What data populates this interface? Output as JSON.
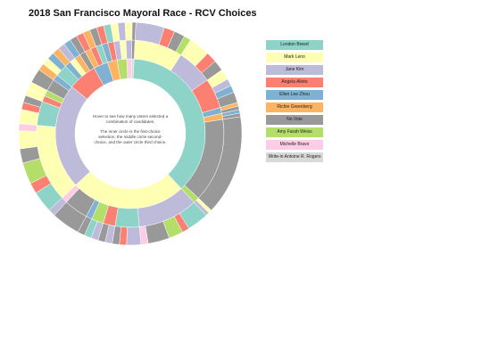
{
  "title": "2018 San Francisco Mayoral Race - RCV Choices",
  "hint": "Hover to see how many voters selected a combination of candidates.",
  "explanation": "The inner circle is the first-choice selection, the middle circle second-choice, and the outer circle third choice.",
  "colors": {
    "London Breed": "#8dd3c7",
    "Mark Leno": "#ffffb3",
    "Jane Kim": "#bebada",
    "Angela Alioto": "#fb8072",
    "Ellen Lee Zhou": "#80b1d3",
    "Richie Greenberg": "#fdb462",
    "No Vote": "#999999",
    "Amy Farah Weiss": "#b3de69",
    "Michelle Bravo": "#fccde5",
    "Write-in Antoine R. Rogers": "#d9d9d9"
  },
  "chart_data": {
    "type": "sunburst",
    "title": "2018 San Francisco Mayoral Race - RCV Choices",
    "legend": [
      "London Breed",
      "Mark Leno",
      "Jane Kim",
      "Angela Alioto",
      "Ellen Lee Zhou",
      "Richie Greenberg",
      "No Vote",
      "Amy Farah Weiss",
      "Michelle Bravo",
      "Write-in Antoine R. Rogers"
    ],
    "legend_position": "right",
    "rings": [
      "first choice",
      "second choice",
      "third choice"
    ],
    "hierarchy": [
      {
        "name": "London Breed",
        "value": 36,
        "children": [
          {
            "name": "Mark Leno",
            "value": 8,
            "children": [
              {
                "name": "Jane Kim",
                "value": 4
              },
              {
                "name": "Angela Alioto",
                "value": 1.5
              },
              {
                "name": "No Vote",
                "value": 1.5
              },
              {
                "name": "Amy Farah Weiss",
                "value": 1
              }
            ]
          },
          {
            "name": "Jane Kim",
            "value": 6,
            "children": [
              {
                "name": "Mark Leno",
                "value": 3
              },
              {
                "name": "Angela Alioto",
                "value": 1.5
              },
              {
                "name": "No Vote",
                "value": 1.5
              }
            ]
          },
          {
            "name": "Angela Alioto",
            "value": 5,
            "children": [
              {
                "name": "Mark Leno",
                "value": 1.5
              },
              {
                "name": "Jane Kim",
                "value": 1
              },
              {
                "name": "Ellen Lee Zhou",
                "value": 1
              },
              {
                "name": "No Vote",
                "value": 1.5
              }
            ]
          },
          {
            "name": "Ellen Lee Zhou",
            "value": 1,
            "children": [
              {
                "name": "Richie Greenberg",
                "value": 0.5
              },
              {
                "name": "No Vote",
                "value": 0.5
              }
            ]
          },
          {
            "name": "Richie Greenberg",
            "value": 1,
            "children": [
              {
                "name": "Ellen Lee Zhou",
                "value": 0.5
              },
              {
                "name": "No Vote",
                "value": 0.5
              }
            ]
          },
          {
            "name": "No Vote",
            "value": 14,
            "children": [
              {
                "name": "No Vote",
                "value": 14
              }
            ]
          },
          {
            "name": "Amy Farah Weiss",
            "value": 1,
            "children": [
              {
                "name": "Mark Leno",
                "value": 0.5
              },
              {
                "name": "Jane Kim",
                "value": 0.5
              }
            ]
          }
        ]
      },
      {
        "name": "Mark Leno",
        "value": 24,
        "children": [
          {
            "name": "Jane Kim",
            "value": 10,
            "children": [
              {
                "name": "London Breed",
                "value": 3
              },
              {
                "name": "Angela Alioto",
                "value": 1
              },
              {
                "name": "Amy Farah Weiss",
                "value": 2
              },
              {
                "name": "No Vote",
                "value": 3
              },
              {
                "name": "Michelle Bravo",
                "value": 1
              }
            ]
          },
          {
            "name": "London Breed",
            "value": 4,
            "children": [
              {
                "name": "Jane Kim",
                "value": 2
              },
              {
                "name": "Angela Alioto",
                "value": 1
              },
              {
                "name": "No Vote",
                "value": 1
              }
            ]
          },
          {
            "name": "Angela Alioto",
            "value": 2,
            "children": [
              {
                "name": "Jane Kim",
                "value": 1
              },
              {
                "name": "No Vote",
                "value": 1
              }
            ]
          },
          {
            "name": "Amy Farah Weiss",
            "value": 2,
            "children": [
              {
                "name": "Jane Kim",
                "value": 1
              },
              {
                "name": "London Breed",
                "value": 1
              }
            ]
          },
          {
            "name": "Ellen Lee Zhou",
            "value": 1,
            "children": [
              {
                "name": "No Vote",
                "value": 1
              }
            ]
          },
          {
            "name": "No Vote",
            "value": 4,
            "children": [
              {
                "name": "No Vote",
                "value": 4
              }
            ]
          },
          {
            "name": "Michelle Bravo",
            "value": 1,
            "children": [
              {
                "name": "Jane Kim",
                "value": 1
              }
            ]
          }
        ]
      },
      {
        "name": "Jane Kim",
        "value": 22,
        "children": [
          {
            "name": "Mark Leno",
            "value": 13,
            "children": [
              {
                "name": "London Breed",
                "value": 3
              },
              {
                "name": "Angela Alioto",
                "value": 1.5
              },
              {
                "name": "Amy Farah Weiss",
                "value": 3
              },
              {
                "name": "No Vote",
                "value": 2
              },
              {
                "name": "Mark Leno",
                "value": 2.5
              },
              {
                "name": "Michelle Bravo",
                "value": 1
              }
            ]
          },
          {
            "name": "London Breed",
            "value": 4,
            "children": [
              {
                "name": "Mark Leno",
                "value": 2
              },
              {
                "name": "Angela Alioto",
                "value": 1
              },
              {
                "name": "No Vote",
                "value": 1
              }
            ]
          },
          {
            "name": "Angela Alioto",
            "value": 1,
            "children": [
              {
                "name": "Mark Leno",
                "value": 1
              }
            ]
          },
          {
            "name": "Amy Farah Weiss",
            "value": 1,
            "children": [
              {
                "name": "Mark Leno",
                "value": 1
              }
            ]
          },
          {
            "name": "No Vote",
            "value": 2,
            "children": [
              {
                "name": "No Vote",
                "value": 2
              }
            ]
          },
          {
            "name": "Ellen Lee Zhou",
            "value": 1,
            "children": [
              {
                "name": "Richie Greenberg",
                "value": 1
              }
            ]
          }
        ]
      },
      {
        "name": "Angela Alioto",
        "value": 6,
        "children": [
          {
            "name": "London Breed",
            "value": 2,
            "children": [
              {
                "name": "Mark Leno",
                "value": 1
              },
              {
                "name": "Ellen Lee Zhou",
                "value": 1
              }
            ]
          },
          {
            "name": "Ellen Lee Zhou",
            "value": 1,
            "children": [
              {
                "name": "Richie Greenberg",
                "value": 1
              }
            ]
          },
          {
            "name": "Mark Leno",
            "value": 1,
            "children": [
              {
                "name": "Jane Kim",
                "value": 1
              }
            ]
          },
          {
            "name": "Richie Greenberg",
            "value": 1,
            "children": [
              {
                "name": "Ellen Lee Zhou",
                "value": 1
              }
            ]
          },
          {
            "name": "No Vote",
            "value": 1,
            "children": [
              {
                "name": "No Vote",
                "value": 1
              }
            ]
          }
        ]
      },
      {
        "name": "Ellen Lee Zhou",
        "value": 3,
        "children": [
          {
            "name": "Richie Greenberg",
            "value": 1,
            "children": [
              {
                "name": "Angela Alioto",
                "value": 1
              }
            ]
          },
          {
            "name": "Angela Alioto",
            "value": 1,
            "children": [
              {
                "name": "Richie Greenberg",
                "value": 1
              }
            ]
          },
          {
            "name": "London Breed",
            "value": 1,
            "children": [
              {
                "name": "No Vote",
                "value": 1
              }
            ]
          }
        ]
      },
      {
        "name": "Richie Greenberg",
        "value": 2,
        "children": [
          {
            "name": "Ellen Lee Zhou",
            "value": 1,
            "children": [
              {
                "name": "Angela Alioto",
                "value": 1
              }
            ]
          },
          {
            "name": "Angela Alioto",
            "value": 1,
            "children": [
              {
                "name": "London Breed",
                "value": 1
              }
            ]
          }
        ]
      },
      {
        "name": "Amy Farah Weiss",
        "value": 2,
        "children": [
          {
            "name": "Jane Kim",
            "value": 1,
            "children": [
              {
                "name": "Mark Leno",
                "value": 1
              }
            ]
          },
          {
            "name": "Mark Leno",
            "value": 1,
            "children": [
              {
                "name": "Jane Kim",
                "value": 1
              }
            ]
          }
        ]
      },
      {
        "name": "Michelle Bravo",
        "value": 1,
        "children": [
          {
            "name": "Jane Kim",
            "value": 1,
            "children": [
              {
                "name": "Mark Leno",
                "value": 1
              }
            ]
          }
        ]
      },
      {
        "name": "Write-in Antoine R. Rogers",
        "value": 0.5,
        "children": [
          {
            "name": "No Vote",
            "value": 0.5,
            "children": [
              {
                "name": "No Vote",
                "value": 0.5
              }
            ]
          }
        ]
      }
    ]
  }
}
